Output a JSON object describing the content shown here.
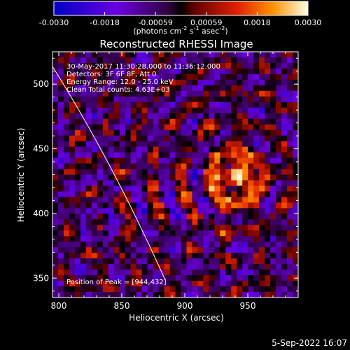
{
  "colorbar": {
    "ticks": [
      "-0.0030",
      "-0.0018",
      "-0.00059",
      "0.00059",
      "0.0018",
      "0.0030"
    ],
    "units_text": "(photons cm",
    "units_sup1": "-2",
    "units_mid": " s",
    "units_sup2": "-1",
    "units_end": " asec",
    "units_sup3": "-2",
    "units_close": ")"
  },
  "plot": {
    "title": "Reconstructed RHESSI Image",
    "xlabel": "Heliocentric X (arcsec)",
    "ylabel": "Heliocentric Y (arcsec)",
    "x_ticks": [
      "800",
      "850",
      "900",
      "950"
    ],
    "y_ticks": [
      "350",
      "400",
      "450",
      "500"
    ],
    "info_lines": [
      "30-May-2017 11:30:28.000 to 11:36:12.000",
      "Detectors: 3F 6F 8F, Att 0",
      "Energy Range: 12.0 - 25.0 keV",
      "Clean    Total counts: 4.63E+03"
    ],
    "peak_text": "Position of Peak = [944,432]",
    "xlim": [
      795,
      990
    ],
    "ylim": [
      335,
      525
    ]
  },
  "footer": {
    "date": "5-Sep-2022 16:07"
  }
}
